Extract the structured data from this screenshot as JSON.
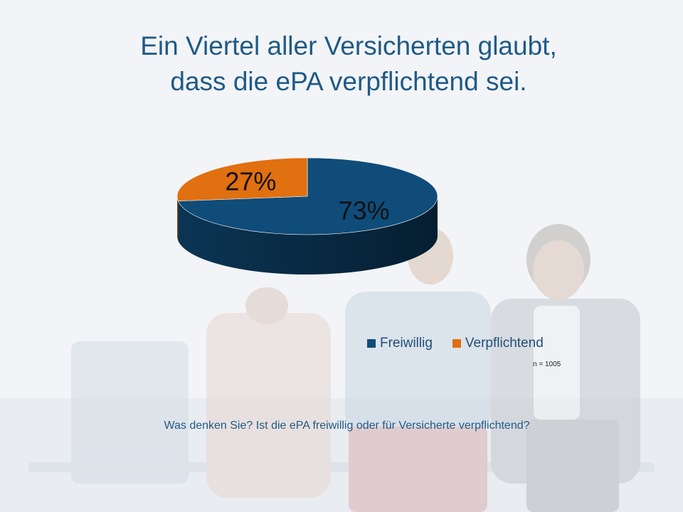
{
  "title": {
    "line1": "Ein Viertel aller Versicherten glaubt,",
    "line2": "dass die ePA verpflichtend sei."
  },
  "chart_data": {
    "type": "pie",
    "categories": [
      "Freiwillig",
      "Verpflichtend"
    ],
    "values": [
      73,
      27
    ],
    "value_labels": [
      "73%",
      "27%"
    ],
    "colors": [
      "#0f4c7a",
      "#e07010"
    ],
    "legend_position": "bottom-right",
    "style": "3d"
  },
  "note": "n = 1005",
  "question": "Was denken Sie? Ist die ePA freiwillig oder für Versicherte verpflichtend?"
}
